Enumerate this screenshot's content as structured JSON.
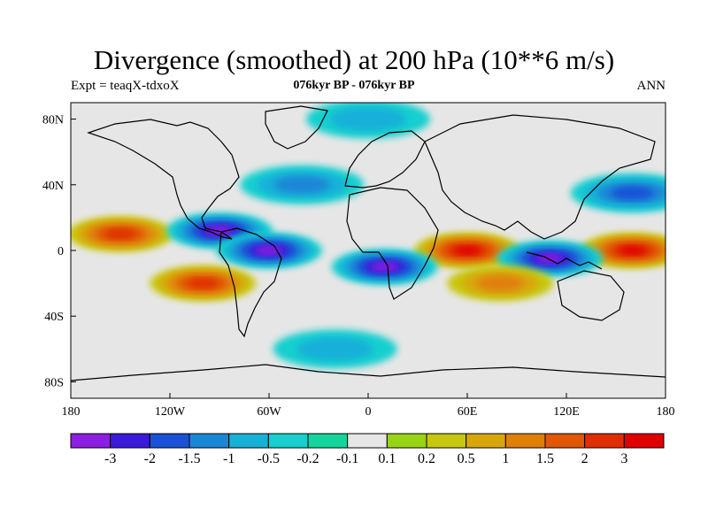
{
  "chart_data": {
    "type": "heatmap",
    "title": "Divergence (smoothed) at 200 hPa (10**6 m/s)",
    "subtitle_left": "Expt = teaqX-tdxoX",
    "subtitle_center": "076kyr BP - 076kyr BP",
    "subtitle_right": "ANN",
    "x_ticks": [
      "180",
      "120W",
      "60W",
      "0",
      "60E",
      "120E",
      "180"
    ],
    "y_ticks": [
      "80N",
      "40N",
      "0",
      "40S",
      "80S"
    ],
    "xlim": [
      -180,
      180
    ],
    "ylim": [
      -90,
      90
    ],
    "colorbar": {
      "colors": [
        "#8c1fe0",
        "#3c1ad9",
        "#1952d6",
        "#1b86d6",
        "#18b0d8",
        "#16cfcf",
        "#13d69d",
        "#e6e6e6",
        "#98d411",
        "#c7c70e",
        "#d8a609",
        "#e07f07",
        "#e05705",
        "#e02d03",
        "#e00000"
      ],
      "labels": [
        "-3",
        "-2",
        "-1.5",
        "-1",
        "-0.5",
        "-0.2",
        "-0.1",
        "0.1",
        "0.2",
        "0.5",
        "1",
        "1.5",
        "2",
        "3"
      ]
    },
    "features": [
      {
        "name": "north-pacific-divergence",
        "lon": -150,
        "lat": 10,
        "value": 2
      },
      {
        "name": "west-pacific-divergence",
        "lon": 160,
        "lat": 0,
        "value": 3
      },
      {
        "name": "indian-ocean-divergence",
        "lon": 60,
        "lat": 0,
        "value": 3
      },
      {
        "name": "central-america-convergence",
        "lon": -90,
        "lat": 12,
        "value": -3
      },
      {
        "name": "south-atlantic-convergence",
        "lon": -60,
        "lat": 0,
        "value": -3
      },
      {
        "name": "africa-convergence",
        "lon": 10,
        "lat": -10,
        "value": -3
      },
      {
        "name": "maritime-convergence",
        "lon": 110,
        "lat": -5,
        "value": -3
      },
      {
        "name": "south-pacific-divergence",
        "lon": -100,
        "lat": -20,
        "value": 2
      },
      {
        "name": "south-indian-divergence",
        "lon": 80,
        "lat": -20,
        "value": 1
      },
      {
        "name": "north-atlantic-convergence",
        "lon": -40,
        "lat": 40,
        "value": -1
      },
      {
        "name": "north-pacific-convergence",
        "lon": 160,
        "lat": 35,
        "value": -1.5
      },
      {
        "name": "southern-ocean-convergence",
        "lon": -20,
        "lat": -60,
        "value": -0.5
      },
      {
        "name": "arctic-convergence",
        "lon": 0,
        "lat": 80,
        "value": -0.5
      }
    ]
  }
}
